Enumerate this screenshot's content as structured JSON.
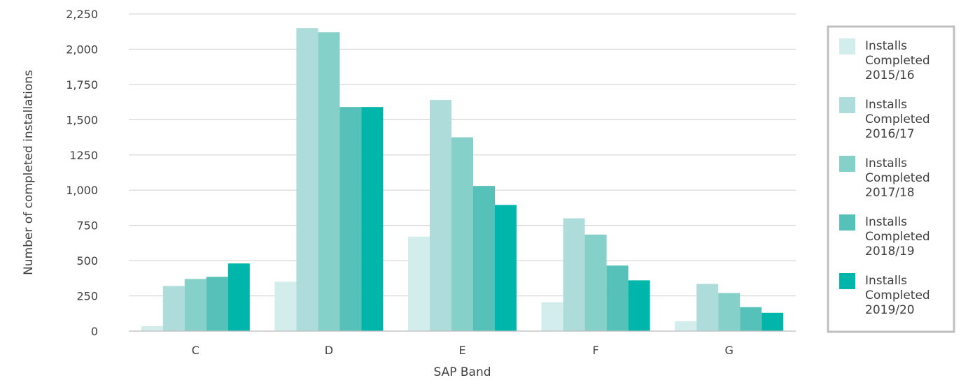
{
  "chart_data": {
    "type": "bar",
    "title": "",
    "xlabel": "SAP Band",
    "ylabel": "Number of completed installations",
    "categories": [
      "C",
      "D",
      "E",
      "F",
      "G"
    ],
    "ylim": [
      0,
      2250
    ],
    "yticks": [
      0,
      250,
      500,
      750,
      1000,
      1250,
      1500,
      1750,
      2000,
      2250
    ],
    "ytick_labels": [
      "0",
      "250",
      "500",
      "750",
      "1,000",
      "1250",
      "1,500",
      "1,750",
      "2,000",
      "2,250"
    ],
    "grid": true,
    "legend_position": "right",
    "series": [
      {
        "name": "Installs Completed 2015/16",
        "color": "#d3ecec",
        "values": [
          35,
          350,
          670,
          205,
          70
        ]
      },
      {
        "name": "Installs Completed 2016/17",
        "color": "#addcda",
        "values": [
          320,
          2150,
          1640,
          800,
          335
        ]
      },
      {
        "name": "Installs Completed 2017/18",
        "color": "#86d0ca",
        "values": [
          370,
          2120,
          1375,
          685,
          270
        ]
      },
      {
        "name": "Installs Completed 2018/19",
        "color": "#55c1b9",
        "values": [
          385,
          1590,
          1030,
          465,
          170
        ]
      },
      {
        "name": "Installs Completed 2019/20",
        "color": "#00b5aa",
        "values": [
          480,
          1590,
          895,
          360,
          130
        ]
      }
    ]
  },
  "legend_lines": [
    [
      "Installs",
      "Completed",
      "2015/16"
    ],
    [
      "Installs",
      "Completed",
      "2016/17"
    ],
    [
      "Installs",
      "Completed",
      "2017/18"
    ],
    [
      "Installs",
      "Completed",
      "2018/19"
    ],
    [
      "Installs",
      "Completed",
      "2019/20"
    ]
  ]
}
